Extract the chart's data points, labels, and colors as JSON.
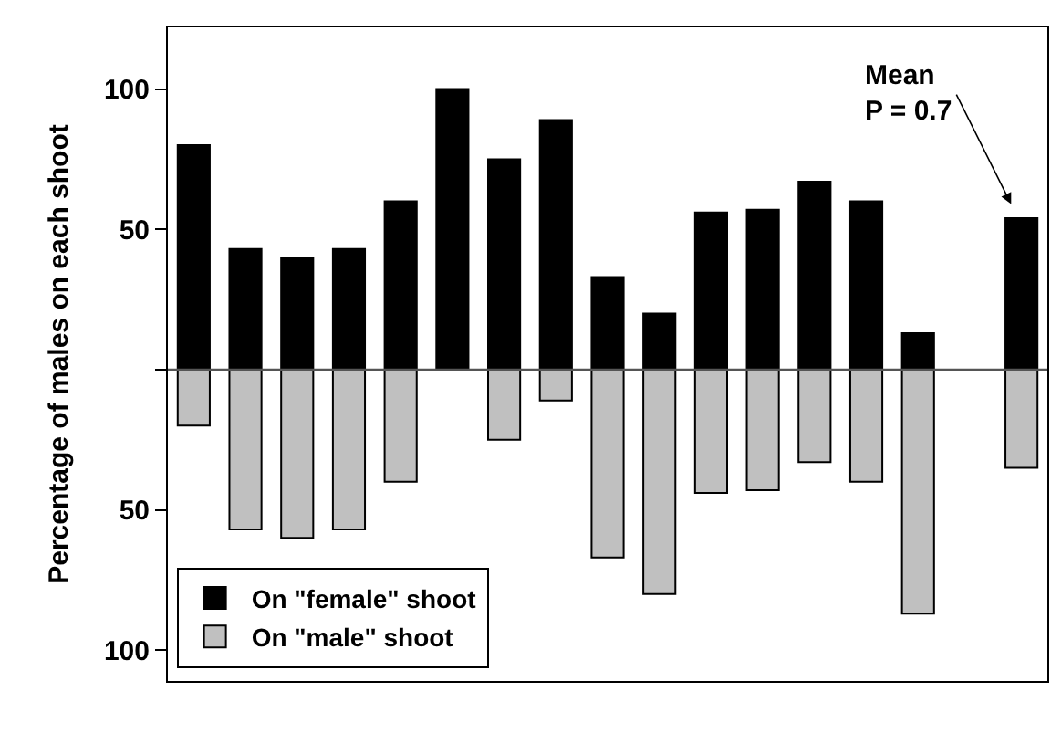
{
  "chart_data": {
    "type": "bar",
    "stacked": true,
    "ylabel": "Percentage of males on each shoot",
    "categories": [
      null,
      null,
      null,
      null,
      null,
      null,
      null,
      null,
      null,
      null,
      null,
      null,
      null,
      null,
      null,
      null,
      null
    ],
    "series": [
      {
        "name": "On \"female\" shoot",
        "color": "#000000",
        "values": [
          80,
          43,
          40,
          43,
          60,
          100,
          75,
          89,
          33,
          20,
          56,
          57,
          67,
          60,
          13,
          null,
          54
        ]
      },
      {
        "name": "On \"male\" shoot",
        "color": "#c0c0c0",
        "values": [
          -20,
          -57,
          -60,
          -57,
          -40,
          0,
          -25,
          -11,
          -67,
          -80,
          -44,
          -43,
          -33,
          -40,
          -87,
          null,
          -35
        ]
      }
    ],
    "ylim": [
      -111,
      122
    ],
    "yticks": [
      100,
      50,
      {
        "value": 0,
        "label": null
      },
      {
        "value": -50,
        "label": "50"
      },
      {
        "value": -100,
        "label": "100"
      }
    ],
    "ref_lines": [
      {
        "axis": "y",
        "value": 0,
        "color": "#555555"
      }
    ],
    "annotations": [
      "Mean\nP = 0.7"
    ],
    "legend": "bottom left"
  }
}
